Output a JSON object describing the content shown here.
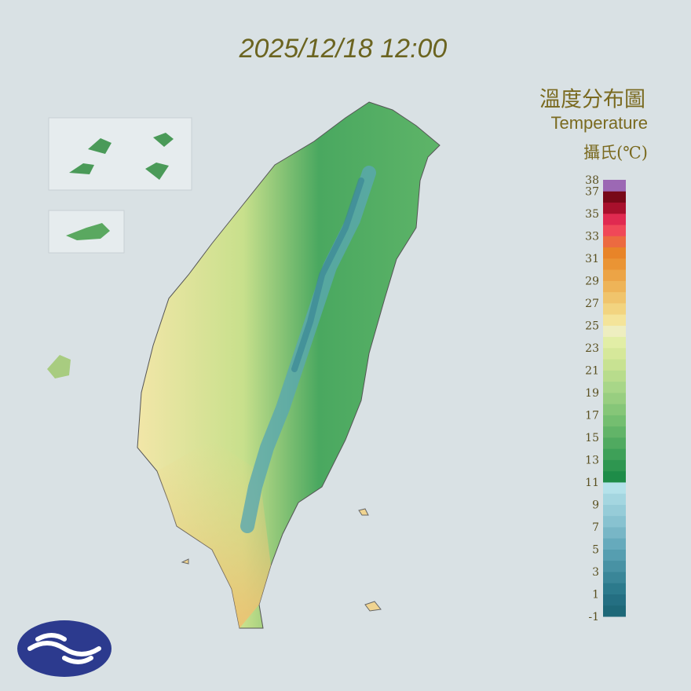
{
  "header": {
    "title": "2025/12/18 12:00"
  },
  "legend": {
    "title": "溫度分布圖",
    "subtitle": "Temperature",
    "unit": "攝氏(℃)",
    "ticks": [
      38,
      37,
      35,
      33,
      31,
      29,
      27,
      25,
      23,
      21,
      19,
      17,
      15,
      13,
      11,
      9,
      7,
      5,
      3,
      1,
      -1
    ],
    "colors": [
      "#1e6878",
      "#246f82",
      "#2c7a8c",
      "#3a8698",
      "#4892a4",
      "#569eb0",
      "#66aabc",
      "#78b6c6",
      "#88c2d0",
      "#96ccd8",
      "#a4d6e0",
      "#b4e2ea",
      "#1e8c48",
      "#2e9650",
      "#3ea058",
      "#50aa60",
      "#62b468",
      "#74be70",
      "#86c678",
      "#98ce80",
      "#a8d688",
      "#b8dc8c",
      "#c8e292",
      "#d6e89a",
      "#e2eea6",
      "#eeeec0",
      "#f4e49a",
      "#f2d480",
      "#f0c46c",
      "#eeb458",
      "#eca446",
      "#ea9434",
      "#e88428",
      "#ec6a40",
      "#f04858",
      "#e02a50",
      "#a8102c",
      "#780818",
      "#9c68b4"
    ]
  }
}
